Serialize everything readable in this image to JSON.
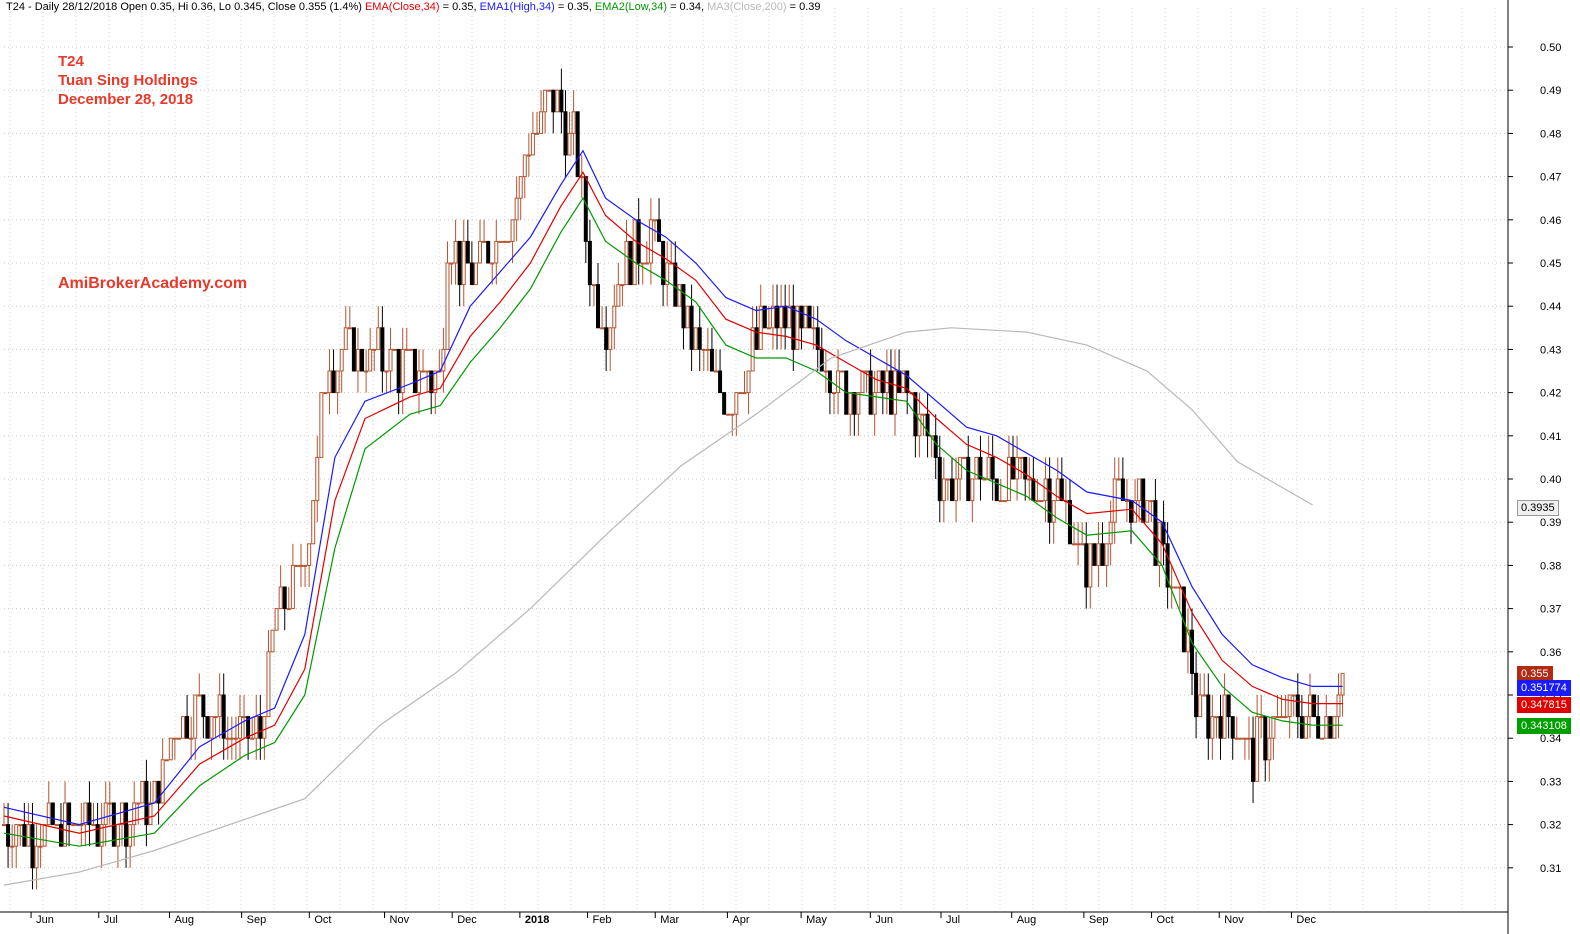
{
  "header": {
    "segments": [
      {
        "text": "T24 - Daily 28/12/2018 Open 0.35, Hi 0.36, Lo 0.345, Close 0.355 (1.4%) ",
        "color": "#000000"
      },
      {
        "text": "EMA(Close,34)",
        "color": "#e00000"
      },
      {
        "text": " = 0.35, ",
        "color": "#000000"
      },
      {
        "text": "EMA1(High,34)",
        "color": "#1a1aff"
      },
      {
        "text": " = 0.35, ",
        "color": "#000000"
      },
      {
        "text": "EMA2(Low,34)",
        "color": "#009900"
      },
      {
        "text": " = 0.34, ",
        "color": "#000000"
      },
      {
        "text": "MA3(Close,200)",
        "color": "#b8b8b8"
      },
      {
        "text": " = 0.39",
        "color": "#000000"
      }
    ]
  },
  "annotations": {
    "symbol": "T24",
    "company": "Tuan Sing Holdings",
    "date": "December 28, 2018",
    "watermark": "AmiBrokerAcademy.com"
  },
  "chart_data": {
    "type": "candlestick-bar",
    "grid": true,
    "ylim": [
      0.3,
      0.5
    ],
    "y_ticks": [
      "0.31",
      "0.32",
      "0.33",
      "0.34",
      "0.35",
      "0.36",
      "0.37",
      "0.38",
      "0.39",
      "0.40",
      "0.41",
      "0.42",
      "0.43",
      "0.44",
      "0.45",
      "0.46",
      "0.47",
      "0.48",
      "0.49",
      "0.50"
    ],
    "x_months": [
      "Jun",
      "Jul",
      "Aug",
      "Sep",
      "Oct",
      "Nov",
      "Dec",
      "2018",
      "Feb",
      "Mar",
      "Apr",
      "May",
      "Jun",
      "Jul",
      "Aug",
      "Sep",
      "Oct",
      "Nov",
      "Dec"
    ],
    "x_month_pos": [
      0.02,
      0.065,
      0.112,
      0.16,
      0.205,
      0.255,
      0.3,
      0.345,
      0.39,
      0.435,
      0.483,
      0.532,
      0.578,
      0.625,
      0.672,
      0.72,
      0.765,
      0.81,
      0.858
    ],
    "price_anchors": [
      [
        0.0,
        0.32
      ],
      [
        0.02,
        0.317
      ],
      [
        0.04,
        0.318
      ],
      [
        0.06,
        0.32
      ],
      [
        0.08,
        0.322
      ],
      [
        0.1,
        0.326
      ],
      [
        0.115,
        0.345
      ],
      [
        0.13,
        0.347
      ],
      [
        0.15,
        0.342
      ],
      [
        0.17,
        0.34
      ],
      [
        0.18,
        0.368
      ],
      [
        0.195,
        0.375
      ],
      [
        0.205,
        0.393
      ],
      [
        0.215,
        0.428
      ],
      [
        0.235,
        0.428
      ],
      [
        0.255,
        0.427
      ],
      [
        0.275,
        0.425
      ],
      [
        0.29,
        0.421
      ],
      [
        0.295,
        0.455
      ],
      [
        0.31,
        0.447
      ],
      [
        0.325,
        0.455
      ],
      [
        0.34,
        0.463
      ],
      [
        0.35,
        0.48
      ],
      [
        0.365,
        0.488
      ],
      [
        0.38,
        0.477
      ],
      [
        0.39,
        0.447
      ],
      [
        0.4,
        0.437
      ],
      [
        0.415,
        0.452
      ],
      [
        0.43,
        0.457
      ],
      [
        0.445,
        0.445
      ],
      [
        0.46,
        0.432
      ],
      [
        0.475,
        0.418
      ],
      [
        0.49,
        0.423
      ],
      [
        0.505,
        0.435
      ],
      [
        0.52,
        0.436
      ],
      [
        0.54,
        0.432
      ],
      [
        0.56,
        0.419
      ],
      [
        0.58,
        0.42
      ],
      [
        0.6,
        0.42
      ],
      [
        0.615,
        0.41
      ],
      [
        0.625,
        0.399
      ],
      [
        0.645,
        0.402
      ],
      [
        0.66,
        0.399
      ],
      [
        0.68,
        0.399
      ],
      [
        0.7,
        0.397
      ],
      [
        0.72,
        0.378
      ],
      [
        0.74,
        0.394
      ],
      [
        0.76,
        0.394
      ],
      [
        0.775,
        0.377
      ],
      [
        0.785,
        0.365
      ],
      [
        0.795,
        0.345
      ],
      [
        0.81,
        0.347
      ],
      [
        0.83,
        0.337
      ],
      [
        0.845,
        0.342
      ],
      [
        0.86,
        0.346
      ],
      [
        0.88,
        0.343
      ],
      [
        0.89,
        0.355
      ]
    ],
    "series": [
      {
        "name": "EMA1(High,34)",
        "color": "#1a1aff",
        "values": [
          [
            0.0,
            0.324
          ],
          [
            0.05,
            0.32
          ],
          [
            0.1,
            0.325
          ],
          [
            0.13,
            0.338
          ],
          [
            0.16,
            0.344
          ],
          [
            0.18,
            0.347
          ],
          [
            0.2,
            0.364
          ],
          [
            0.22,
            0.405
          ],
          [
            0.24,
            0.418
          ],
          [
            0.27,
            0.422
          ],
          [
            0.29,
            0.425
          ],
          [
            0.31,
            0.44
          ],
          [
            0.33,
            0.448
          ],
          [
            0.35,
            0.456
          ],
          [
            0.37,
            0.468
          ],
          [
            0.385,
            0.476
          ],
          [
            0.4,
            0.465
          ],
          [
            0.42,
            0.46
          ],
          [
            0.44,
            0.456
          ],
          [
            0.46,
            0.45
          ],
          [
            0.48,
            0.442
          ],
          [
            0.5,
            0.439
          ],
          [
            0.52,
            0.44
          ],
          [
            0.54,
            0.437
          ],
          [
            0.56,
            0.432
          ],
          [
            0.58,
            0.428
          ],
          [
            0.6,
            0.424
          ],
          [
            0.62,
            0.418
          ],
          [
            0.64,
            0.412
          ],
          [
            0.66,
            0.41
          ],
          [
            0.68,
            0.406
          ],
          [
            0.7,
            0.402
          ],
          [
            0.72,
            0.397
          ],
          [
            0.75,
            0.395
          ],
          [
            0.77,
            0.39
          ],
          [
            0.79,
            0.375
          ],
          [
            0.81,
            0.364
          ],
          [
            0.83,
            0.357
          ],
          [
            0.85,
            0.354
          ],
          [
            0.87,
            0.352
          ],
          [
            0.89,
            0.352
          ]
        ]
      },
      {
        "name": "EMA(Close,34)",
        "color": "#e00000",
        "values": [
          [
            0.0,
            0.322
          ],
          [
            0.05,
            0.318
          ],
          [
            0.1,
            0.322
          ],
          [
            0.13,
            0.334
          ],
          [
            0.16,
            0.34
          ],
          [
            0.18,
            0.343
          ],
          [
            0.2,
            0.356
          ],
          [
            0.22,
            0.395
          ],
          [
            0.24,
            0.414
          ],
          [
            0.27,
            0.419
          ],
          [
            0.29,
            0.421
          ],
          [
            0.31,
            0.433
          ],
          [
            0.33,
            0.441
          ],
          [
            0.35,
            0.45
          ],
          [
            0.37,
            0.463
          ],
          [
            0.385,
            0.471
          ],
          [
            0.4,
            0.461
          ],
          [
            0.42,
            0.455
          ],
          [
            0.44,
            0.451
          ],
          [
            0.46,
            0.446
          ],
          [
            0.48,
            0.437
          ],
          [
            0.5,
            0.434
          ],
          [
            0.52,
            0.433
          ],
          [
            0.54,
            0.431
          ],
          [
            0.56,
            0.427
          ],
          [
            0.58,
            0.423
          ],
          [
            0.6,
            0.421
          ],
          [
            0.62,
            0.414
          ],
          [
            0.64,
            0.408
          ],
          [
            0.66,
            0.405
          ],
          [
            0.68,
            0.401
          ],
          [
            0.7,
            0.396
          ],
          [
            0.72,
            0.392
          ],
          [
            0.75,
            0.393
          ],
          [
            0.77,
            0.385
          ],
          [
            0.79,
            0.369
          ],
          [
            0.81,
            0.358
          ],
          [
            0.83,
            0.352
          ],
          [
            0.85,
            0.349
          ],
          [
            0.87,
            0.348
          ],
          [
            0.89,
            0.348
          ]
        ]
      },
      {
        "name": "EMA2(Low,34)",
        "color": "#009900",
        "values": [
          [
            0.0,
            0.318
          ],
          [
            0.05,
            0.315
          ],
          [
            0.1,
            0.318
          ],
          [
            0.13,
            0.329
          ],
          [
            0.16,
            0.336
          ],
          [
            0.18,
            0.339
          ],
          [
            0.2,
            0.35
          ],
          [
            0.22,
            0.384
          ],
          [
            0.24,
            0.407
          ],
          [
            0.27,
            0.415
          ],
          [
            0.29,
            0.417
          ],
          [
            0.31,
            0.427
          ],
          [
            0.33,
            0.435
          ],
          [
            0.35,
            0.444
          ],
          [
            0.37,
            0.457
          ],
          [
            0.385,
            0.465
          ],
          [
            0.4,
            0.455
          ],
          [
            0.42,
            0.45
          ],
          [
            0.44,
            0.446
          ],
          [
            0.46,
            0.441
          ],
          [
            0.48,
            0.431
          ],
          [
            0.5,
            0.428
          ],
          [
            0.52,
            0.428
          ],
          [
            0.54,
            0.425
          ],
          [
            0.56,
            0.42
          ],
          [
            0.58,
            0.419
          ],
          [
            0.6,
            0.418
          ],
          [
            0.62,
            0.408
          ],
          [
            0.64,
            0.402
          ],
          [
            0.66,
            0.399
          ],
          [
            0.68,
            0.396
          ],
          [
            0.7,
            0.391
          ],
          [
            0.72,
            0.387
          ],
          [
            0.75,
            0.388
          ],
          [
            0.77,
            0.38
          ],
          [
            0.79,
            0.362
          ],
          [
            0.81,
            0.352
          ],
          [
            0.83,
            0.346
          ],
          [
            0.85,
            0.344
          ],
          [
            0.87,
            0.343
          ],
          [
            0.89,
            0.343
          ]
        ]
      },
      {
        "name": "MA3(Close,200)",
        "color": "#b8b8b8",
        "values": [
          [
            0.0,
            0.306
          ],
          [
            0.05,
            0.309
          ],
          [
            0.1,
            0.314
          ],
          [
            0.15,
            0.32
          ],
          [
            0.2,
            0.326
          ],
          [
            0.25,
            0.343
          ],
          [
            0.3,
            0.355
          ],
          [
            0.35,
            0.37
          ],
          [
            0.4,
            0.387
          ],
          [
            0.45,
            0.403
          ],
          [
            0.5,
            0.415
          ],
          [
            0.55,
            0.428
          ],
          [
            0.6,
            0.434
          ],
          [
            0.63,
            0.435
          ],
          [
            0.68,
            0.434
          ],
          [
            0.72,
            0.431
          ],
          [
            0.76,
            0.425
          ],
          [
            0.79,
            0.416
          ],
          [
            0.82,
            0.404
          ],
          [
            0.85,
            0.398
          ],
          [
            0.87,
            0.394
          ]
        ]
      }
    ],
    "last_value_tags": [
      {
        "value": "0.3935",
        "display": "0.3935",
        "bg": "#f0f0f0",
        "fg": "#000000",
        "border": "#999999"
      },
      {
        "value": "0.355",
        "display": "0.355",
        "bg": "#b22a14",
        "fg": "#ffffff",
        "border": "#b22a14"
      },
      {
        "value": "0.351774",
        "display": "0.351774",
        "bg": "#1a1aff",
        "fg": "#ffffff",
        "border": "#1a1aff"
      },
      {
        "value": "0.347815",
        "display": "0.347815",
        "bg": "#e00000",
        "fg": "#ffffff",
        "border": "#e00000"
      },
      {
        "value": "0.343108",
        "display": "0.343108",
        "bg": "#00a000",
        "fg": "#ffffff",
        "border": "#00a000"
      }
    ],
    "up_color": "#b5532f",
    "down_color": "#000000"
  }
}
